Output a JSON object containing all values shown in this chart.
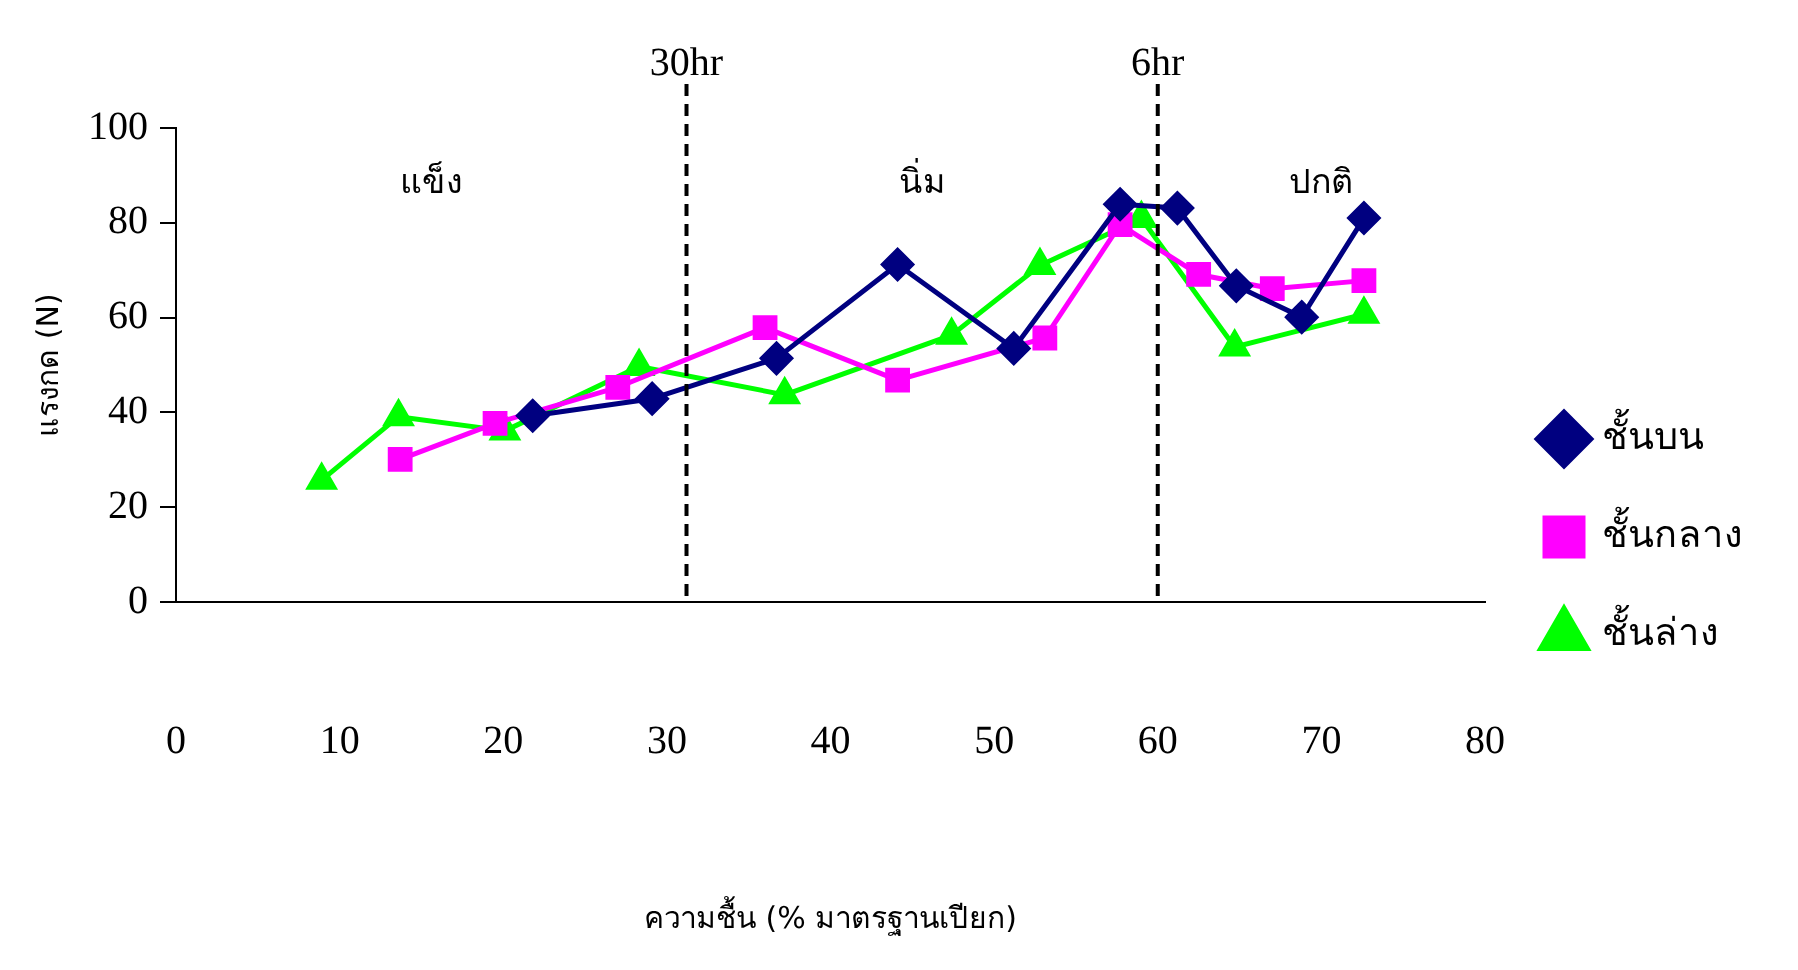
{
  "chart_data": {
    "type": "line",
    "xlabel": "ความชื้น (% มาตรฐานเปียก)",
    "ylabel": "แรงกด (N)",
    "xlim": [
      0,
      80
    ],
    "xticks": [
      0,
      10,
      20,
      30,
      40,
      50,
      60,
      70,
      80
    ],
    "ylim": [
      0,
      100
    ],
    "yticks": [
      0,
      20,
      40,
      60,
      80,
      100
    ],
    "grid": false,
    "legend": "right",
    "line_style": "solid",
    "series": [
      {
        "name": "ชั้นบน",
        "color": "#000080",
        "marker": "diamond",
        "x": [
          21.8,
          29.1,
          36.7,
          44.1,
          51.2,
          57.7,
          61.2,
          64.8,
          68.8,
          72.6
        ],
        "values": [
          39.3,
          42.9,
          51.4,
          71.2,
          53.5,
          83.9,
          83.1,
          66.7,
          60.1,
          81
        ]
      },
      {
        "name": "ชั้นกลาง",
        "color": "#ff00ff",
        "marker": "square",
        "x": [
          13.7,
          19.5,
          27.0,
          36.0,
          44.1,
          53.1,
          57.7,
          62.5,
          67.0,
          72.6
        ],
        "values": [
          30.1,
          37.7,
          45.3,
          57.9,
          46.8,
          55.7,
          79.6,
          69.1,
          66.1,
          67.8
        ]
      },
      {
        "name": "ชั้นล่าง",
        "color": "#00ff00",
        "marker": "triangle",
        "x": [
          8.9,
          13.6,
          20.1,
          28.3,
          37.2,
          47.4,
          52.8,
          59.0,
          64.7,
          72.6
        ],
        "values": [
          25.7,
          39.1,
          36.1,
          49.7,
          43.7,
          56.3,
          71.0,
          80.9,
          53.8,
          60.7
        ]
      }
    ],
    "ref_lines": [
      {
        "axis": "x",
        "value": 31.2,
        "label": "30hr",
        "color": "#000000",
        "line_style": "dashed"
      },
      {
        "axis": "x",
        "value": 60,
        "label": "6hr",
        "color": "#000000",
        "line_style": "dashed"
      }
    ],
    "annotations": [
      "แข็ง",
      "นิ่ม",
      "ปกติ"
    ]
  }
}
